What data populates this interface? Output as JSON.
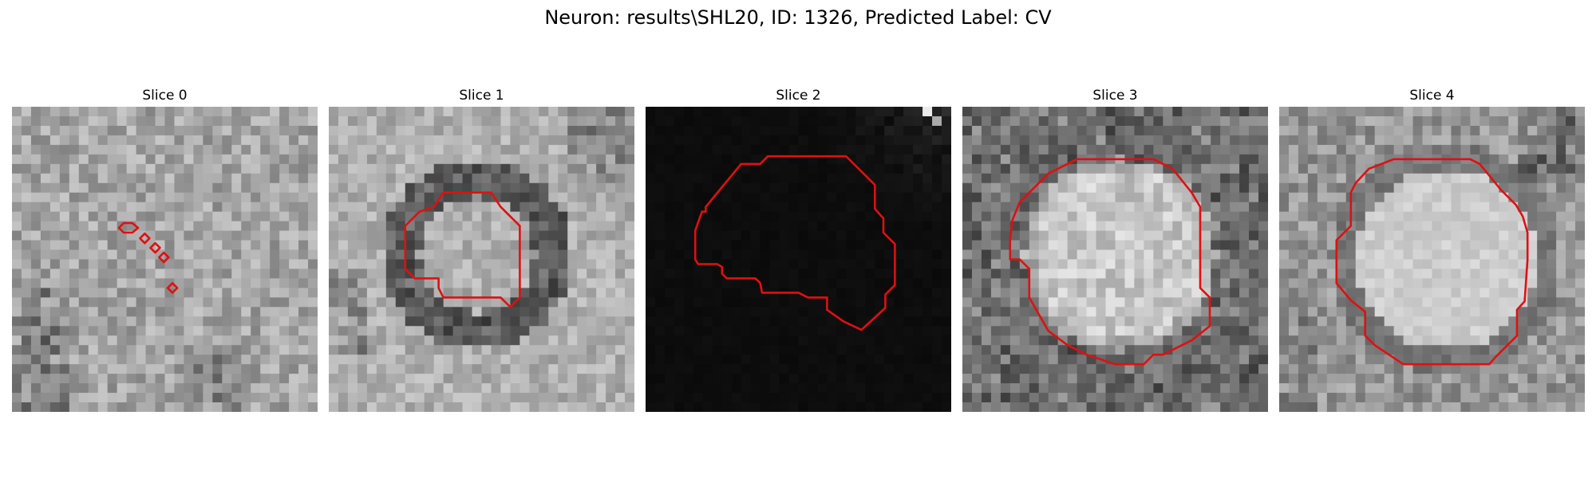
{
  "figure": {
    "title": "Neuron: results\\SHL20, ID: 1326, Predicted Label: CV"
  },
  "contour_color": "#e01010",
  "panels": [
    {
      "title": "Slice 0",
      "style": "gray",
      "contour": "small-diamonds"
    },
    {
      "title": "Slice 1",
      "style": "gray",
      "contour": "ring"
    },
    {
      "title": "Slice 2",
      "style": "black",
      "contour": "blob"
    },
    {
      "title": "Slice 3",
      "style": "gray",
      "contour": "octagon-large"
    },
    {
      "title": "Slice 4",
      "style": "bright",
      "contour": "octagon-round"
    }
  ]
}
